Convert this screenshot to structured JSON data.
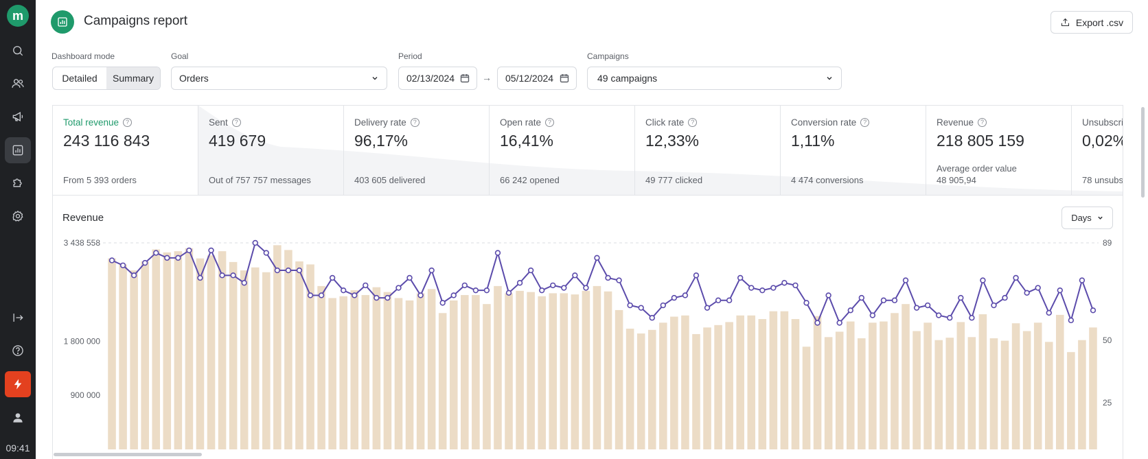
{
  "sidebar": {
    "logo": "m",
    "time": "09:41",
    "items": [
      {
        "icon": "search-icon"
      },
      {
        "icon": "users-icon"
      },
      {
        "icon": "megaphone-icon"
      },
      {
        "icon": "bar-chart-icon"
      },
      {
        "icon": "puzzle-icon"
      },
      {
        "icon": "gear-icon"
      },
      {
        "icon": "logout-icon"
      },
      {
        "icon": "help-icon"
      },
      {
        "icon": "lightning-icon"
      },
      {
        "icon": "user-icon"
      }
    ]
  },
  "header": {
    "title": "Campaigns report",
    "export_label": "Export .csv"
  },
  "filters": {
    "mode_label": "Dashboard mode",
    "mode_options": [
      "Detailed",
      "Summary"
    ],
    "goal_label": "Goal",
    "goal_value": "Orders",
    "period_label": "Period",
    "period_from": "02/13/2024",
    "period_arrow": "→",
    "period_to": "05/12/2024",
    "campaigns_label": "Campaigns",
    "campaigns_value": "49 campaigns"
  },
  "metrics": [
    {
      "label": "Total revenue",
      "value": "243 116 843",
      "sub": "From 5 393 orders"
    },
    {
      "label": "Sent",
      "value": "419 679",
      "sub": "Out of 757 757 messages"
    },
    {
      "label": "Delivery rate",
      "value": "96,17%",
      "sub": "403 605 delivered"
    },
    {
      "label": "Open rate",
      "value": "16,41%",
      "sub": "66 242 opened"
    },
    {
      "label": "Click rate",
      "value": "12,33%",
      "sub": "49 777 clicked"
    },
    {
      "label": "Conversion rate",
      "value": "1,11%",
      "sub": "4 474 conversions"
    },
    {
      "label": "Revenue",
      "value": "218 805 159",
      "sub_top": "Average order value",
      "sub": "48 905,94"
    },
    {
      "label": "Unsubscri",
      "value": "0,02%",
      "sub": "78 unsubs"
    }
  ],
  "chart_panel": {
    "title": "Revenue",
    "interval": "Days"
  },
  "colors": {
    "accent": "#1f9a6b",
    "bar": "#ecdcc6",
    "line": "#5b4bab",
    "alert": "#e3411f"
  },
  "chart_data": {
    "type": "bar",
    "title": "Revenue",
    "y_left_ticks": [
      "3 438 558",
      "1 800 000",
      "900 000"
    ],
    "y_left_tick_values": [
      3438558,
      1800000,
      900000
    ],
    "y_right_ticks": [
      "89",
      "50",
      "25"
    ],
    "y_right_tick_values": [
      89,
      50,
      25
    ],
    "series": [
      {
        "name": "Revenue",
        "axis": "left",
        "type": "bar",
        "values": [
          3180000,
          3080000,
          2980000,
          3130000,
          3330000,
          3280000,
          3300000,
          3350000,
          3180000,
          3230000,
          3300000,
          3120000,
          2980000,
          3030000,
          2950000,
          3400000,
          3320000,
          3130000,
          3080000,
          2720000,
          2520000,
          2550000,
          2650000,
          2570000,
          2700000,
          2620000,
          2520000,
          2480000,
          2600000,
          2670000,
          2270000,
          2480000,
          2570000,
          2570000,
          2420000,
          2720000,
          2600000,
          2640000,
          2620000,
          2550000,
          2600000,
          2600000,
          2580000,
          2640000,
          2720000,
          2630000,
          2320000,
          2010000,
          1930000,
          1990000,
          2110000,
          2210000,
          2230000,
          1920000,
          2030000,
          2070000,
          2120000,
          2230000,
          2230000,
          2170000,
          2300000,
          2300000,
          2170000,
          1710000,
          2220000,
          1870000,
          1960000,
          2130000,
          1850000,
          2110000,
          2130000,
          2270000,
          2420000,
          1970000,
          2110000,
          1820000,
          1860000,
          2120000,
          1870000,
          2250000,
          1850000,
          1810000,
          2100000,
          1970000,
          2110000,
          1790000,
          2240000,
          1620000,
          1820000,
          2030000
        ]
      },
      {
        "name": "Orders",
        "axis": "right",
        "type": "line",
        "values": [
          82,
          80,
          76,
          81,
          85,
          83,
          83,
          86,
          75,
          86,
          76,
          76,
          73,
          89,
          85,
          78,
          78,
          78,
          68,
          68,
          75,
          70,
          68,
          72,
          67,
          67,
          71,
          75,
          68,
          78,
          65,
          68,
          72,
          70,
          70,
          85,
          69,
          73,
          78,
          70,
          72,
          71,
          76,
          71,
          83,
          75,
          74,
          64,
          63,
          59,
          64,
          67,
          68,
          76,
          63,
          66,
          66,
          75,
          71,
          70,
          71,
          73,
          72,
          65,
          57,
          68,
          57,
          62,
          67,
          60,
          66,
          66,
          74,
          63,
          64,
          60,
          59,
          67,
          59,
          74,
          64,
          67,
          75,
          69,
          71,
          61,
          70,
          58,
          74,
          62
        ]
      }
    ]
  }
}
